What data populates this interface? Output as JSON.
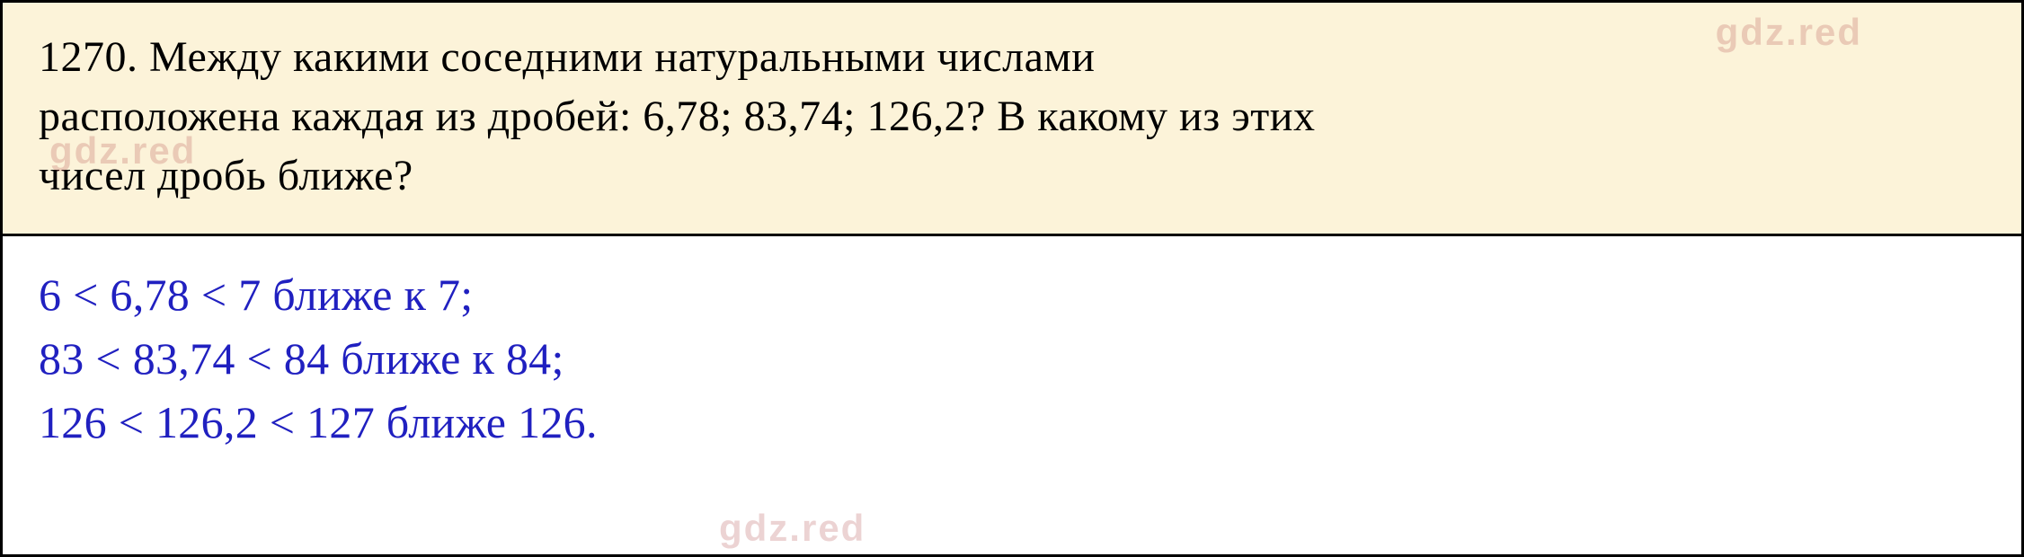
{
  "problem": {
    "number": "1270.",
    "text_line1": "1270.    Между    какими    соседними    натуральными    числами",
    "text_line2": "расположена каждая из дробей: 6,78; 83,74; 126,2? В какому из этих",
    "text_line3": "чисел дробь ближе?",
    "background_color": "#fcf3d9"
  },
  "solution": {
    "line1": "6 < 6,78 < 7 ближе к 7;",
    "line2": "83 < 83,74 < 84 ближе к 84;",
    "line3": "126 < 126,2 < 127 ближе 126.",
    "text_color": "#2020c0",
    "background_color": "#ffffff"
  },
  "watermark": {
    "text": "gdz.red",
    "color": "rgba(180, 80, 80, 0.25)"
  },
  "border_color": "#000000",
  "text_color_problem": "#000000",
  "font_size_problem": 48,
  "font_size_solution": 50
}
